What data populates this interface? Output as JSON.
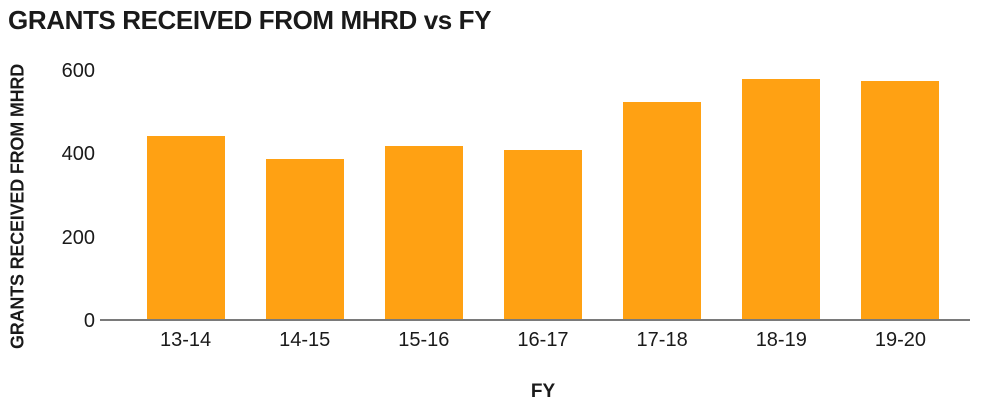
{
  "chart_data": {
    "type": "bar",
    "title": "GRANTS RECEIVED FROM MHRD vs FY",
    "xlabel": "FY",
    "ylabel": "GRANTS RECEIVED FROM MHRD",
    "categories": [
      "13-14",
      "14-15",
      "15-16",
      "16-17",
      "17-18",
      "18-19",
      "19-20"
    ],
    "values": [
      445,
      390,
      420,
      410,
      525,
      580,
      575
    ],
    "yticks": [
      0,
      200,
      400,
      600
    ],
    "ylim": [
      0,
      600
    ],
    "grid": false,
    "legend": "none",
    "colors": {
      "bar": "#FFA113",
      "axis_line": "#7A7A7A",
      "text": "#1A1A1A",
      "background": "#FFFFFF"
    }
  }
}
